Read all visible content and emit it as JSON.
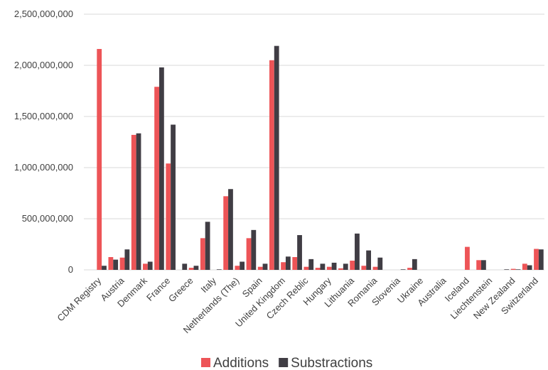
{
  "chart_data": {
    "type": "bar",
    "categories": [
      "CDM Registry",
      null,
      "Austria",
      null,
      "Denmark",
      null,
      "France",
      null,
      "Greece",
      null,
      "Italy",
      null,
      "Netherlands (The)",
      null,
      "Spain",
      null,
      "United Kingdom",
      null,
      "Czech Reblic",
      null,
      "Hungary",
      null,
      "Lithuania",
      null,
      "Romania",
      null,
      "Slovenia",
      null,
      "Ukraine",
      null,
      "Australia",
      null,
      "Iceland",
      null,
      "Liechtenstein",
      null,
      "New Zealand",
      null,
      "Switzerland"
    ],
    "series": [
      {
        "name": "Additions",
        "color": "#ed5457",
        "values": [
          2160000000,
          125000000,
          120000000,
          1320000000,
          60000000,
          1790000000,
          1040000000,
          0,
          20000000,
          310000000,
          0,
          720000000,
          40000000,
          310000000,
          30000000,
          2050000000,
          75000000,
          125000000,
          30000000,
          20000000,
          30000000,
          15000000,
          90000000,
          40000000,
          30000000,
          0,
          0,
          20000000,
          0,
          0,
          0,
          0,
          225000000,
          95000000,
          0,
          0,
          10000000,
          60000000,
          205000000
        ]
      },
      {
        "name": "Substractions",
        "color": "#403d44",
        "values": [
          40000000,
          100000000,
          200000000,
          1335000000,
          80000000,
          1980000000,
          1420000000,
          60000000,
          40000000,
          470000000,
          5000000,
          790000000,
          80000000,
          390000000,
          60000000,
          2190000000,
          130000000,
          340000000,
          105000000,
          60000000,
          70000000,
          60000000,
          355000000,
          190000000,
          120000000,
          0,
          5000000,
          105000000,
          0,
          0,
          0,
          0,
          0,
          95000000,
          0,
          5000000,
          5000000,
          45000000,
          200000000
        ]
      }
    ],
    "ylim": [
      0,
      2500000000
    ],
    "yticks": [
      {
        "value": 0,
        "label": "0"
      },
      {
        "value": 500000000,
        "label": "500,000,000"
      },
      {
        "value": 1000000000,
        "label": "1,000,000,000"
      },
      {
        "value": 1500000000,
        "label": "1,500,000,000"
      },
      {
        "value": 2000000000,
        "label": "2,000,000,000"
      },
      {
        "value": 2500000000,
        "label": "2,500,000,000"
      }
    ],
    "grid": true,
    "legend": "bottom"
  }
}
